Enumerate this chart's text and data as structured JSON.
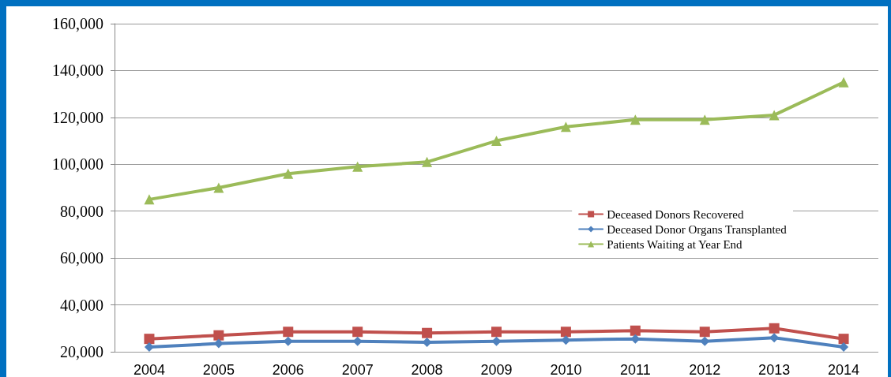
{
  "chart_data": {
    "type": "line",
    "categories": [
      "2004",
      "2005",
      "2006",
      "2007",
      "2008",
      "2009",
      "2010",
      "2011",
      "2012",
      "2013",
      "2014"
    ],
    "series": [
      {
        "name": "Deceased Donors Recovered",
        "color": "#c0504d",
        "marker": "square",
        "values": [
          25500,
          27000,
          28500,
          28500,
          28000,
          28500,
          28500,
          29000,
          28500,
          30000,
          25500
        ]
      },
      {
        "name": "Deceased Donor Organs Transplanted",
        "color": "#4f81bd",
        "marker": "diamond",
        "values": [
          22000,
          23500,
          24500,
          24500,
          24000,
          24500,
          25000,
          25500,
          24500,
          26000,
          22000
        ]
      },
      {
        "name": "Patients Waiting at Year End",
        "color": "#9bbb59",
        "marker": "triangle",
        "values": [
          85000,
          90000,
          96000,
          99000,
          101000,
          110000,
          116000,
          119000,
          119000,
          121000,
          135000
        ]
      }
    ],
    "ylim": [
      20000,
      160000
    ],
    "yticks": [
      {
        "value": 20000,
        "label": "20,000"
      },
      {
        "value": 40000,
        "label": "40,000"
      },
      {
        "value": 60000,
        "label": "60,000"
      },
      {
        "value": 80000,
        "label": "80,000"
      },
      {
        "value": 100000,
        "label": "100,000"
      },
      {
        "value": 120000,
        "label": "120,000"
      },
      {
        "value": 140000,
        "label": "140,000"
      },
      {
        "value": 160000,
        "label": "160,000"
      }
    ],
    "grid": "y",
    "legend": "right",
    "line_style": "solid"
  }
}
